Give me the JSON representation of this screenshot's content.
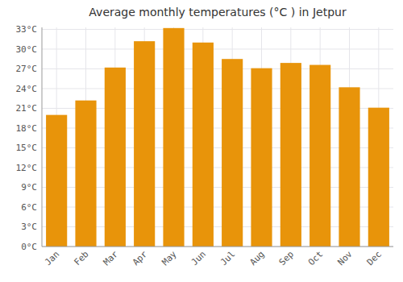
{
  "chart_data": {
    "type": "bar",
    "title": "Average monthly temperatures (°C ) in Jetpur",
    "categories": [
      "Jan",
      "Feb",
      "Mar",
      "Apr",
      "May",
      "Jun",
      "Jul",
      "Aug",
      "Sep",
      "Oct",
      "Nov",
      "Dec"
    ],
    "values": [
      20.0,
      22.2,
      27.2,
      31.2,
      33.2,
      31.0,
      28.5,
      27.1,
      27.9,
      27.6,
      24.2,
      21.1
    ],
    "color": "#E8940A",
    "ylim": [
      0,
      33.3
    ],
    "yticks": [
      {
        "value": 0,
        "label": "0°C"
      },
      {
        "value": 3,
        "label": "3°C"
      },
      {
        "value": 6,
        "label": "6°C"
      },
      {
        "value": 9,
        "label": "9°C"
      },
      {
        "value": 12,
        "label": "12°C"
      },
      {
        "value": 15,
        "label": "15°C"
      },
      {
        "value": 18,
        "label": "18°C"
      },
      {
        "value": 21,
        "label": "21°C"
      },
      {
        "value": 24,
        "label": "24°C"
      },
      {
        "value": 27,
        "label": "27°C"
      },
      {
        "value": 30,
        "label": "30°C"
      },
      {
        "value": 33,
        "label": "33°C"
      }
    ],
    "grid": true
  }
}
